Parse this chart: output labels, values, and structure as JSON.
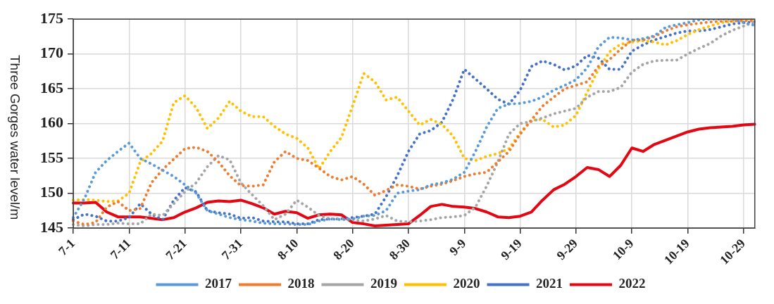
{
  "chart_data": {
    "type": "line",
    "ylabel": "Three Gorges water level/m",
    "categories": [
      "7-1",
      null,
      null,
      null,
      null,
      "7-11",
      null,
      null,
      null,
      null,
      "7-21",
      null,
      null,
      null,
      null,
      "7-31",
      null,
      null,
      null,
      null,
      "8-10",
      null,
      null,
      null,
      null,
      "8-20",
      null,
      null,
      null,
      null,
      "8-30",
      null,
      null,
      null,
      null,
      "9-9",
      null,
      null,
      null,
      null,
      "9-19",
      null,
      null,
      null,
      null,
      "9-29",
      null,
      null,
      null,
      null,
      "10-9",
      null,
      null,
      null,
      null,
      "10-19",
      null,
      null,
      null,
      null,
      "10-29",
      null
    ],
    "series": [
      {
        "name": "2017",
        "color": "#5b9bd5",
        "line_style": "dotted",
        "values": [
          146.5,
          149.2,
          153.0,
          154.7,
          156.0,
          157.2,
          155.0,
          154.2,
          153.3,
          152.4,
          151.2,
          150.0,
          147.5,
          147.0,
          146.5,
          146.2,
          146.0,
          145.7,
          145.6,
          145.6,
          145.5,
          145.5,
          146.0,
          146.3,
          146.2,
          146.3,
          146.7,
          146.8,
          147.5,
          150.0,
          150.3,
          150.5,
          151.2,
          151.5,
          152.0,
          153.0,
          156.0,
          159.5,
          162.2,
          162.8,
          162.9,
          163.2,
          163.8,
          164.8,
          165.5,
          166.3,
          168.0,
          171.0,
          172.4,
          172.3,
          172.0,
          172.2,
          172.6,
          173.8,
          174.2,
          174.5,
          174.9,
          175.0,
          175.0,
          175.0,
          174.5,
          174.1
        ]
      },
      {
        "name": "2018",
        "color": "#ed7d31",
        "line_style": "dotted",
        "values": [
          146.0,
          145.5,
          145.8,
          148.0,
          148.8,
          147.5,
          147.8,
          151.5,
          153.4,
          154.9,
          156.4,
          156.6,
          156.0,
          154.5,
          152.5,
          151.1,
          151.0,
          151.2,
          154.5,
          156.0,
          155.0,
          154.7,
          153.6,
          152.4,
          151.9,
          152.4,
          151.3,
          149.7,
          150.4,
          151.2,
          151.0,
          150.6,
          151.0,
          151.3,
          151.8,
          152.4,
          152.8,
          153.0,
          154.5,
          156.0,
          158.5,
          160.5,
          162.5,
          163.8,
          165.0,
          165.5,
          166.0,
          168.2,
          169.2,
          170.7,
          172.0,
          172.0,
          172.5,
          173.3,
          173.9,
          174.2,
          174.4,
          174.6,
          174.7,
          174.7,
          174.8,
          174.8
        ]
      },
      {
        "name": "2019",
        "color": "#a5a5a5",
        "line_style": "dotted",
        "values": [
          145.5,
          145.3,
          145.5,
          145.5,
          145.7,
          145.6,
          145.6,
          147.0,
          146.8,
          148.5,
          150.2,
          151.5,
          153.8,
          155.4,
          154.8,
          151.5,
          149.8,
          148.2,
          146.2,
          147.0,
          149.0,
          148.0,
          146.8,
          146.3,
          146.3,
          146.2,
          146.0,
          146.3,
          146.8,
          146.0,
          145.9,
          146.0,
          146.2,
          146.5,
          146.6,
          146.8,
          148.0,
          151.0,
          154.5,
          158.5,
          160.0,
          160.3,
          160.8,
          161.4,
          161.8,
          162.2,
          163.8,
          164.6,
          164.6,
          165.2,
          167.4,
          168.5,
          169.0,
          169.1,
          169.1,
          170.0,
          170.8,
          171.5,
          172.6,
          173.4,
          174.0,
          174.6
        ]
      },
      {
        "name": "2020",
        "color": "#ffc000",
        "line_style": "dotted",
        "values": [
          149.0,
          149.1,
          149.0,
          148.8,
          148.9,
          150.0,
          154.5,
          155.7,
          157.5,
          163.0,
          164.0,
          162.3,
          159.3,
          160.8,
          163.2,
          161.8,
          161.0,
          161.0,
          159.6,
          158.5,
          157.9,
          156.5,
          153.5,
          156.0,
          158.0,
          162.5,
          167.2,
          166.0,
          163.4,
          163.8,
          161.8,
          159.8,
          160.6,
          159.9,
          158.2,
          155.0,
          154.7,
          155.3,
          155.7,
          156.4,
          158.7,
          160.5,
          160.6,
          159.5,
          159.8,
          161.2,
          164.5,
          167.8,
          170.3,
          171.4,
          171.7,
          171.9,
          171.7,
          171.3,
          171.9,
          172.8,
          173.5,
          174.0,
          174.5,
          174.7,
          174.9,
          175.0
        ]
      },
      {
        "name": "2021",
        "color": "#4472c4",
        "line_style": "dotted",
        "values": [
          146.2,
          147.0,
          146.7,
          146.0,
          146.0,
          146.5,
          148.5,
          147.0,
          146.2,
          149.0,
          150.8,
          150.2,
          147.5,
          147.2,
          147.0,
          146.4,
          146.5,
          146.0,
          145.9,
          145.9,
          145.6,
          145.6,
          146.2,
          146.3,
          146.3,
          146.5,
          146.7,
          147.0,
          149.5,
          152.5,
          156.0,
          158.5,
          159.0,
          160.2,
          163.5,
          167.8,
          166.4,
          165.0,
          163.5,
          162.8,
          164.8,
          168.2,
          169.0,
          168.5,
          167.7,
          168.3,
          169.8,
          169.4,
          167.8,
          167.8,
          170.4,
          171.3,
          172.0,
          172.5,
          173.0,
          173.3,
          173.3,
          173.5,
          173.9,
          174.3,
          174.5,
          174.6
        ]
      },
      {
        "name": "2022",
        "color": "#e30613",
        "line_style": "solid",
        "values": [
          148.6,
          148.6,
          148.7,
          147.3,
          146.6,
          146.6,
          146.6,
          146.4,
          146.2,
          146.5,
          147.3,
          147.9,
          148.7,
          148.9,
          148.8,
          149.0,
          148.5,
          147.9,
          147.0,
          147.4,
          147.2,
          146.4,
          146.9,
          147.0,
          146.9,
          145.8,
          145.6,
          145.3,
          145.4,
          145.5,
          145.6,
          146.8,
          148.1,
          148.4,
          148.1,
          148.0,
          147.8,
          147.3,
          146.6,
          146.5,
          146.7,
          147.3,
          149.0,
          150.5,
          151.3,
          152.4,
          153.7,
          153.4,
          152.4,
          154.0,
          156.5,
          156.0,
          157.0,
          157.6,
          158.2,
          158.8,
          159.2,
          159.4,
          159.5,
          159.6,
          159.8,
          159.9
        ]
      }
    ],
    "ylim": [
      145,
      175
    ],
    "yticks": [
      145,
      150,
      155,
      160,
      165,
      170,
      175
    ],
    "grid": true,
    "legend": "bottom",
    "marker": "none"
  }
}
